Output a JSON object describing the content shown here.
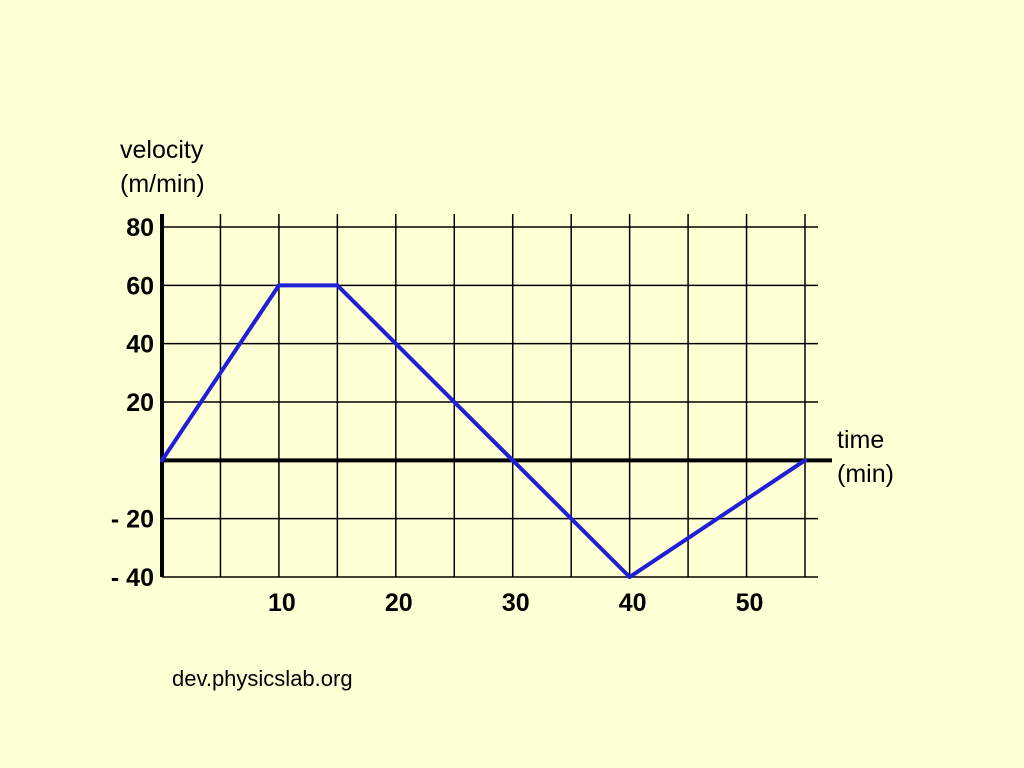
{
  "source_text": "dev.physicslab.org",
  "colors": {
    "background": "#ffffd6",
    "series": "#1f1fd6",
    "axis": "#000000"
  },
  "chart_data": {
    "type": "line",
    "ylabel_lines": [
      "velocity",
      "(m/min)"
    ],
    "xlabel_lines": [
      "time",
      "(min)"
    ],
    "xlim": [
      0,
      55
    ],
    "ylim": [
      -40,
      80
    ],
    "grid": true,
    "x_grid_step": 5,
    "y_grid_step": 20,
    "x_ticks": [
      10,
      20,
      30,
      40,
      50
    ],
    "x_tick_labels": [
      "10",
      "20",
      "30",
      "40",
      "50"
    ],
    "y_ticks": [
      80,
      60,
      40,
      20,
      -20,
      -40
    ],
    "y_tick_labels": [
      "80",
      "60",
      "40",
      "20",
      "- 20",
      "- 40"
    ],
    "series": [
      {
        "x": [
          0,
          10,
          15,
          30,
          40,
          55
        ],
        "y": [
          0,
          60,
          60,
          0,
          -40,
          0
        ]
      }
    ]
  }
}
